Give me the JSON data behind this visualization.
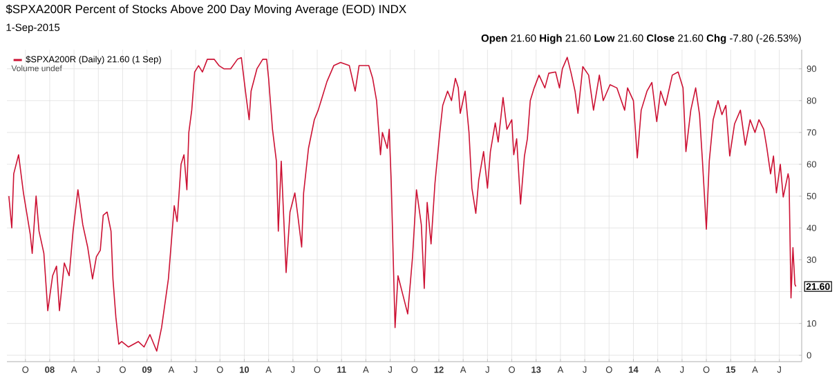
{
  "chart_data": {
    "type": "line",
    "title": "$SPXA200R Percent of Stocks Above 200 Day Moving Average (EOD) INDX",
    "subtitle": "1-Sep-2015",
    "annotations": [
      "**Open** 21.60 **High** 21.60 **Low** 21.60 **Close** 21.60 **Chg** -7.80 (-26.53%)",
      "Volume undef",
      {
        "text": "21.60",
        "x": 2015.67,
        "y": 21.6
      }
    ],
    "series": [
      {
        "name": "$SPXA200R (Daily) 21.60 (1 Sep)",
        "color": "#cc1133",
        "x": [
          2007.58,
          2007.61,
          2007.63,
          2007.68,
          2007.73,
          2007.8,
          2007.82,
          2007.86,
          2007.89,
          2007.94,
          2007.98,
          2008.03,
          2008.07,
          2008.1,
          2008.15,
          2008.2,
          2008.24,
          2008.29,
          2008.34,
          2008.39,
          2008.44,
          2008.48,
          2008.52,
          2008.55,
          2008.59,
          2008.63,
          2008.65,
          2008.68,
          2008.71,
          2008.74,
          2008.81,
          2008.91,
          2008.97,
          2009.03,
          2009.1,
          2009.15,
          2009.22,
          2009.28,
          2009.31,
          2009.35,
          2009.38,
          2009.41,
          2009.43,
          2009.46,
          2009.49,
          2009.53,
          2009.57,
          2009.62,
          2009.69,
          2009.74,
          2009.79,
          2009.86,
          2009.93,
          2009.97,
          2010.02,
          2010.05,
          2010.07,
          2010.13,
          2010.19,
          2010.23,
          2010.25,
          2010.29,
          2010.33,
          2010.35,
          2010.38,
          2010.43,
          2010.47,
          2010.52,
          2010.55,
          2010.59,
          2010.61,
          2010.66,
          2010.72,
          2010.76,
          2010.8,
          2010.85,
          2010.92,
          2010.99,
          2011.08,
          2011.14,
          2011.18,
          2011.28,
          2011.32,
          2011.36,
          2011.4,
          2011.42,
          2011.47,
          2011.49,
          2011.51,
          2011.55,
          2011.58,
          2011.63,
          2011.68,
          2011.73,
          2011.77,
          2011.82,
          2011.85,
          2011.88,
          2011.92,
          2011.96,
          2012.01,
          2012.04,
          2012.09,
          2012.13,
          2012.17,
          2012.2,
          2012.22,
          2012.27,
          2012.31,
          2012.34,
          2012.38,
          2012.41,
          2012.46,
          2012.5,
          2012.53,
          2012.58,
          2012.61,
          2012.66,
          2012.7,
          2012.75,
          2012.77,
          2012.8,
          2012.84,
          2012.88,
          2012.91,
          2012.94,
          2012.98,
          2013.03,
          2013.09,
          2013.13,
          2013.2,
          2013.24,
          2013.27,
          2013.32,
          2013.36,
          2013.4,
          2013.43,
          2013.48,
          2013.54,
          2013.59,
          2013.65,
          2013.69,
          2013.76,
          2013.83,
          2013.91,
          2013.94,
          2014.0,
          2014.04,
          2014.08,
          2014.14,
          2014.19,
          2014.24,
          2014.28,
          2014.33,
          2014.4,
          2014.46,
          2014.51,
          2014.54,
          2014.59,
          2014.64,
          2014.68,
          2014.71,
          2014.75,
          2014.78,
          2014.82,
          2014.87,
          2014.91,
          2014.95,
          2014.99,
          2015.04,
          2015.1,
          2015.15,
          2015.2,
          2015.25,
          2015.29,
          2015.34,
          2015.37,
          2015.41,
          2015.44,
          2015.47,
          2015.51,
          2015.54,
          2015.59,
          2015.6,
          2015.62,
          2015.64,
          2015.66,
          2015.67
        ],
        "values": [
          50,
          40,
          57,
          63,
          51,
          38,
          32,
          50,
          39,
          32,
          14,
          25,
          28,
          14,
          29,
          25,
          39,
          52,
          41,
          34,
          24,
          31,
          33,
          44,
          45,
          39,
          24,
          12,
          3.5,
          4.3,
          2.6,
          4.3,
          2.6,
          6.5,
          1.3,
          8.7,
          24,
          47,
          42,
          60,
          63,
          52,
          70,
          77,
          89,
          91,
          89,
          93,
          93,
          91,
          90,
          90,
          93,
          93.5,
          81,
          74,
          83,
          90,
          93,
          93,
          87,
          71,
          61,
          39,
          61,
          26,
          45,
          51,
          44,
          34,
          51,
          65,
          74,
          77,
          81,
          86,
          91,
          92,
          91,
          83,
          91,
          91,
          87,
          80,
          63,
          70,
          65,
          71,
          55,
          8.7,
          25,
          19,
          13,
          31,
          52,
          41,
          21,
          48,
          35,
          54,
          70,
          78.5,
          83,
          80,
          87,
          84,
          76,
          83,
          70,
          52.5,
          44.6,
          55,
          64,
          52.5,
          64,
          73,
          67,
          81,
          71,
          74,
          63,
          68,
          47.5,
          62.6,
          68,
          80,
          84,
          88,
          84,
          88.6,
          89,
          84,
          90,
          93.6,
          88.6,
          83,
          76,
          90.7,
          88,
          77,
          88,
          80,
          85,
          84,
          77,
          84,
          80,
          62,
          77,
          83,
          85.7,
          73.4,
          83,
          78.5,
          88,
          89,
          84,
          64,
          77,
          84,
          75.6,
          61,
          39.6,
          61,
          74,
          80,
          75.6,
          78.5,
          62.6,
          72.7,
          77,
          66,
          74,
          70,
          74,
          71,
          65.5,
          57,
          62.6,
          51,
          60,
          49.7,
          57,
          55.4,
          18,
          33.8,
          22.3,
          21.6
        ]
      }
    ],
    "xlim": [
      2007.56,
      2015.73
    ],
    "ylim": [
      -2,
      96
    ],
    "xticks": [
      {
        "value": 2007.75,
        "label": "O"
      },
      {
        "value": 2008,
        "label": "08"
      },
      {
        "value": 2008.25,
        "label": "A"
      },
      {
        "value": 2008.5,
        "label": "J"
      },
      {
        "value": 2008.75,
        "label": "O"
      },
      {
        "value": 2009,
        "label": "09"
      },
      {
        "value": 2009.25,
        "label": "A"
      },
      {
        "value": 2009.5,
        "label": "J"
      },
      {
        "value": 2009.75,
        "label": "O"
      },
      {
        "value": 2010,
        "label": "10"
      },
      {
        "value": 2010.25,
        "label": "A"
      },
      {
        "value": 2010.5,
        "label": "J"
      },
      {
        "value": 2010.75,
        "label": "O"
      },
      {
        "value": 2011,
        "label": "11"
      },
      {
        "value": 2011.25,
        "label": "A"
      },
      {
        "value": 2011.5,
        "label": "J"
      },
      {
        "value": 2011.75,
        "label": "O"
      },
      {
        "value": 2012,
        "label": "12"
      },
      {
        "value": 2012.25,
        "label": "A"
      },
      {
        "value": 2012.5,
        "label": "J"
      },
      {
        "value": 2012.75,
        "label": "O"
      },
      {
        "value": 2013,
        "label": "13"
      },
      {
        "value": 2013.25,
        "label": "A"
      },
      {
        "value": 2013.5,
        "label": "J"
      },
      {
        "value": 2013.75,
        "label": "O"
      },
      {
        "value": 2014,
        "label": "14"
      },
      {
        "value": 2014.25,
        "label": "A"
      },
      {
        "value": 2014.5,
        "label": "J"
      },
      {
        "value": 2014.75,
        "label": "O"
      },
      {
        "value": 2015,
        "label": "15"
      },
      {
        "value": 2015.25,
        "label": "A"
      },
      {
        "value": 2015.5,
        "label": "J"
      }
    ],
    "yticks": [
      0,
      10,
      {
        "value": 20,
        "label": null
      },
      30,
      40,
      50,
      60,
      70,
      80,
      90
    ],
    "grid": true,
    "legend": "top left"
  }
}
